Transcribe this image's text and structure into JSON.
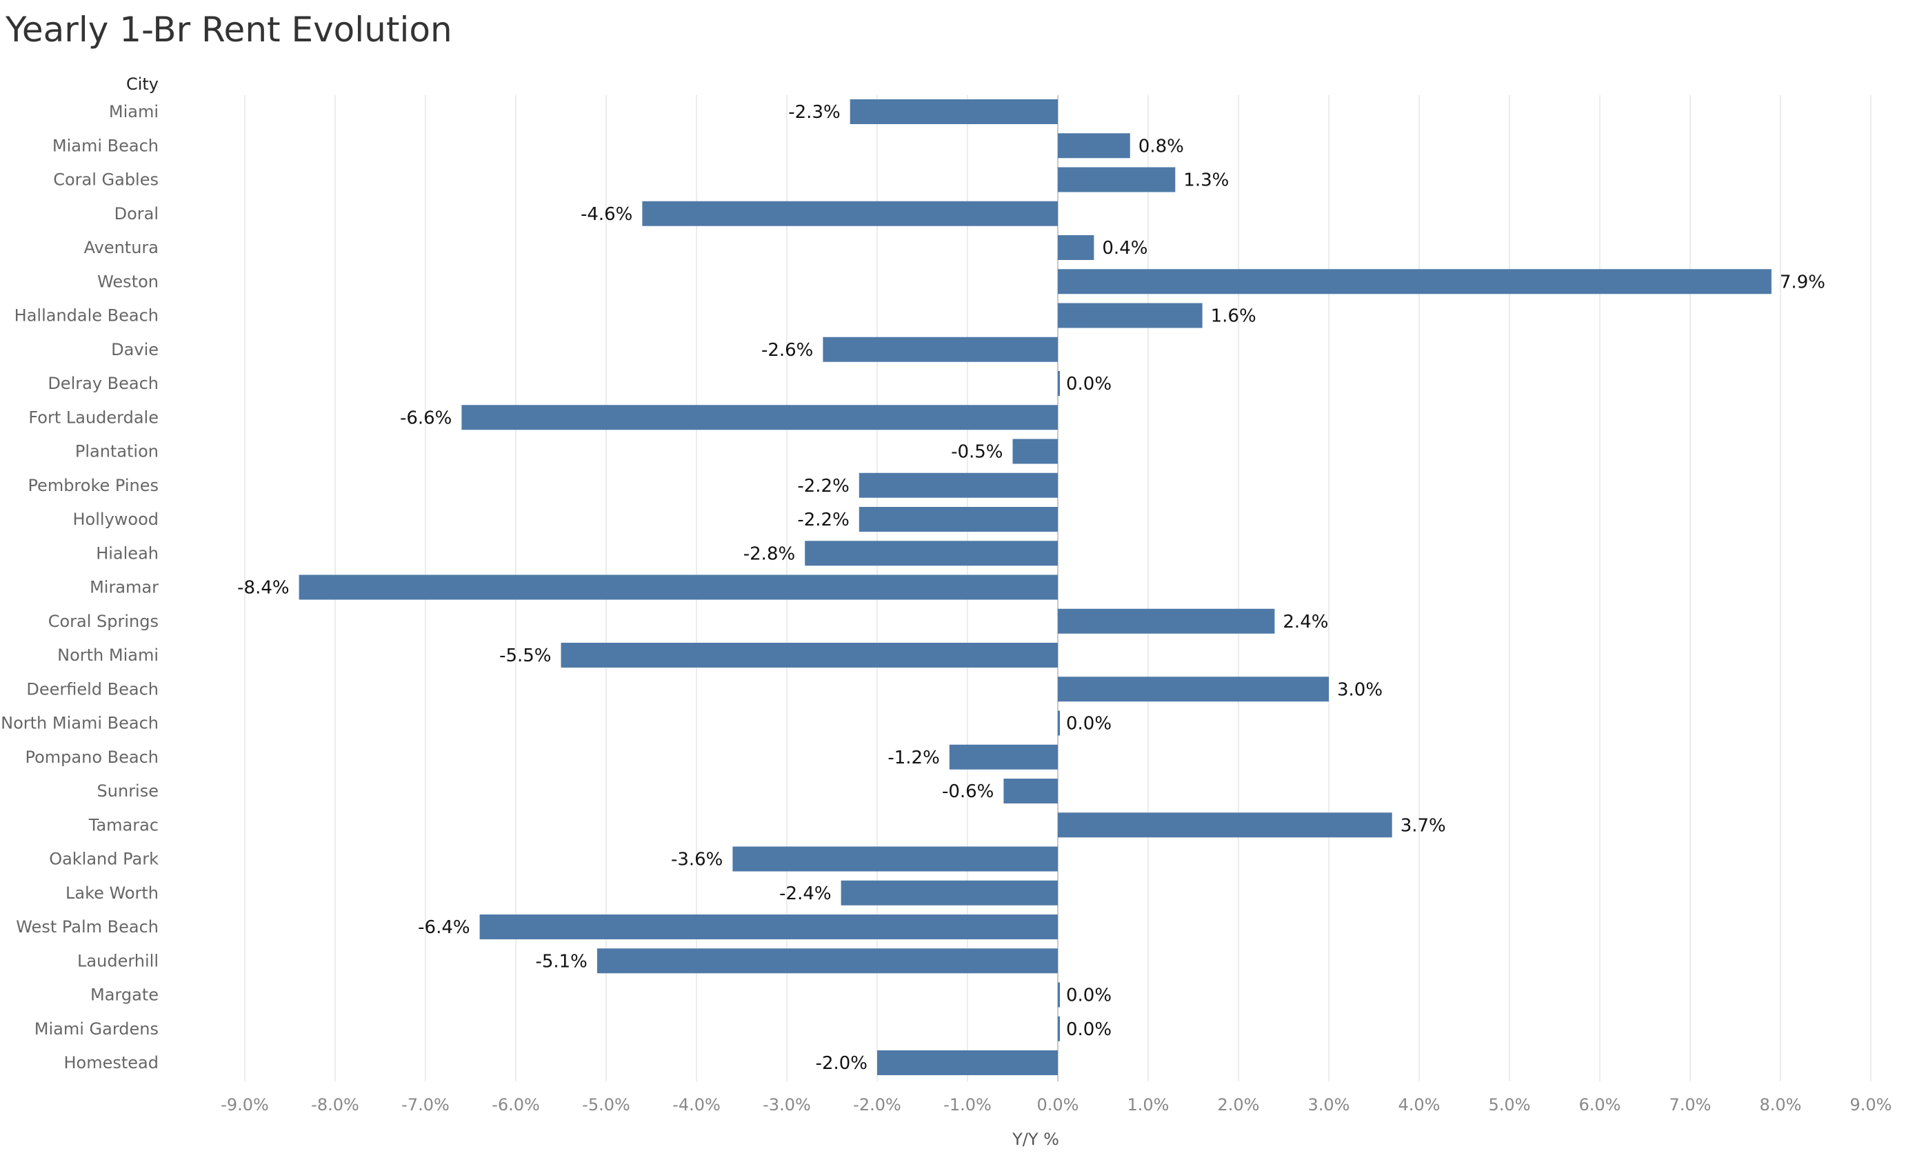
{
  "chart_data": {
    "type": "bar",
    "orientation": "horizontal",
    "title": "Yearly 1-Br Rent Evolution",
    "category_header": "City",
    "xlabel": "Y/Y %",
    "xlim": [
      -9.0,
      9.0
    ],
    "xticks": [
      -9,
      -8,
      -7,
      -6,
      -5,
      -4,
      -3,
      -2,
      -1,
      0,
      1,
      2,
      3,
      4,
      5,
      6,
      7,
      8,
      9
    ],
    "tick_suffix": "%",
    "grid": true,
    "bar_color": "#4e79a7",
    "categories": [
      "Miami",
      "Miami Beach",
      "Coral Gables",
      "Doral",
      "Aventura",
      "Weston",
      "Hallandale Beach",
      "Davie",
      "Delray Beach",
      "Fort Lauderdale",
      "Plantation",
      "Pembroke Pines",
      "Hollywood",
      "Hialeah",
      "Miramar",
      "Coral Springs",
      "North Miami",
      "Deerfield Beach",
      "North Miami Beach",
      "Pompano Beach",
      "Sunrise",
      "Tamarac",
      "Oakland Park",
      "Lake Worth",
      "West Palm Beach",
      "Lauderhill",
      "Margate",
      "Miami Gardens",
      "Homestead"
    ],
    "values": [
      -2.3,
      0.8,
      1.3,
      -4.6,
      0.4,
      7.9,
      1.6,
      -2.6,
      0.0,
      -6.6,
      -0.5,
      -2.2,
      -2.2,
      -2.8,
      -8.4,
      2.4,
      -5.5,
      3.0,
      0.0,
      -1.2,
      -0.6,
      3.7,
      -3.6,
      -2.4,
      -6.4,
      -5.1,
      0.0,
      0.0,
      -2.0
    ],
    "data_labels": [
      "-2.3%",
      "0.8%",
      "1.3%",
      "-4.6%",
      "0.4%",
      "7.9%",
      "1.6%",
      "-2.6%",
      "0.0%",
      "-6.6%",
      "-0.5%",
      "-2.2%",
      "-2.2%",
      "-2.8%",
      "-8.4%",
      "2.4%",
      "-5.5%",
      "3.0%",
      "0.0%",
      "-1.2%",
      "-0.6%",
      "3.7%",
      "-3.6%",
      "-2.4%",
      "-6.4%",
      "-5.1%",
      "0.0%",
      "0.0%",
      "-2.0%"
    ]
  }
}
